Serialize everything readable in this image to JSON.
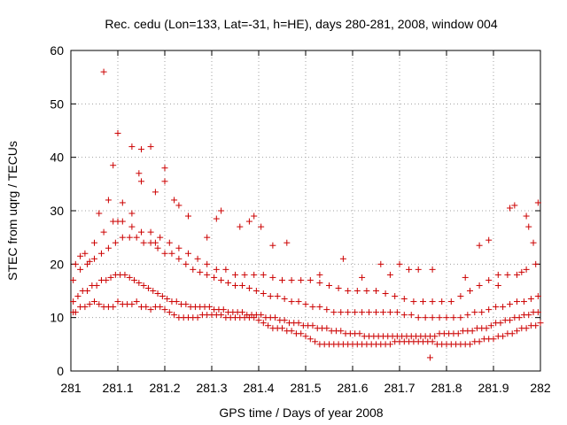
{
  "chart_data": {
    "type": "scatter",
    "title": "Rec. cedu (Lon=133, Lat=-31, h=HE), days 280-281, 2008, window 004",
    "xlabel": "GPS time / Days of year 2008",
    "ylabel": "STEC from uqrg / TECUs",
    "xlim": [
      281,
      282
    ],
    "ylim": [
      0,
      60
    ],
    "xticks": [
      281,
      281.1,
      281.2,
      281.3,
      281.4,
      281.5,
      281.6,
      281.7,
      281.8,
      281.9,
      282
    ],
    "xtick_labels": [
      "281",
      "281.1",
      "281.2",
      "281.3",
      "281.4",
      "281.5",
      "281.6",
      "281.7",
      "281.8",
      "281.9",
      "282"
    ],
    "yticks": [
      0,
      10,
      20,
      30,
      40,
      50,
      60
    ],
    "ytick_labels": [
      "0",
      "10",
      "20",
      "30",
      "40",
      "50",
      "60"
    ],
    "grid": true,
    "marker": "+",
    "color": "#cc0000",
    "series": [
      {
        "name": "",
        "x": [
          281.005,
          281.01,
          281.02,
          281.03,
          281.04,
          281.05,
          281.06,
          281.07,
          281.08,
          281.09,
          281.1,
          281.11,
          281.12,
          281.13,
          281.14,
          281.15,
          281.16,
          281.17,
          281.18,
          281.19,
          281.2,
          281.21,
          281.22,
          281.23,
          281.24,
          281.25,
          281.26,
          281.27,
          281.28,
          281.29,
          281.3,
          281.31,
          281.32,
          281.33,
          281.34,
          281.35,
          281.36,
          281.37,
          281.38,
          281.39,
          281.4,
          281.41,
          281.42,
          281.43,
          281.44,
          281.45,
          281.46,
          281.47,
          281.48,
          281.49,
          281.5,
          281.51,
          281.52,
          281.53,
          281.54,
          281.55,
          281.56,
          281.57,
          281.58,
          281.59,
          281.6,
          281.61,
          281.62,
          281.63,
          281.64,
          281.65,
          281.66,
          281.67,
          281.68,
          281.69,
          281.7,
          281.71,
          281.72,
          281.73,
          281.74,
          281.75,
          281.76,
          281.77,
          281.78,
          281.79,
          281.8,
          281.81,
          281.82,
          281.83,
          281.84,
          281.85,
          281.86,
          281.87,
          281.88,
          281.89,
          281.9,
          281.91,
          281.92,
          281.93,
          281.94,
          281.95,
          281.96,
          281.97,
          281.98,
          281.99,
          282,
          281.005,
          281.015,
          281.025,
          281.035,
          281.045,
          281.055,
          281.065,
          281.075,
          281.085,
          281.095,
          281.105,
          281.115,
          281.125,
          281.135,
          281.145,
          281.155,
          281.165,
          281.175,
          281.185,
          281.195,
          281.205,
          281.215,
          281.225,
          281.235,
          281.245,
          281.255,
          281.265,
          281.275,
          281.285,
          281.295,
          281.305,
          281.315,
          281.325,
          281.335,
          281.345,
          281.355,
          281.365,
          281.375,
          281.385,
          281.395,
          281.405,
          281.415,
          281.425,
          281.435,
          281.445,
          281.455,
          281.465,
          281.475,
          281.485,
          281.495,
          281.505,
          281.515,
          281.525,
          281.535,
          281.545,
          281.555,
          281.565,
          281.575,
          281.585,
          281.595,
          281.605,
          281.615,
          281.625,
          281.635,
          281.645,
          281.655,
          281.665,
          281.675,
          281.685,
          281.695,
          281.705,
          281.715,
          281.725,
          281.735,
          281.745,
          281.755,
          281.765,
          281.775,
          281.785,
          281.795,
          281.805,
          281.815,
          281.825,
          281.835,
          281.845,
          281.855,
          281.865,
          281.875,
          281.885,
          281.895,
          281.905,
          281.915,
          281.925,
          281.935,
          281.945,
          281.955,
          281.965,
          281.975,
          281.985,
          281.995,
          281.005,
          281.02,
          281.035,
          281.05,
          281.065,
          281.08,
          281.095,
          281.11,
          281.125,
          281.14,
          281.155,
          281.17,
          281.185,
          281.2,
          281.215,
          281.23,
          281.245,
          281.26,
          281.275,
          281.29,
          281.305,
          281.32,
          281.335,
          281.35,
          281.365,
          281.38,
          281.395,
          281.41,
          281.425,
          281.44,
          281.455,
          281.47,
          281.485,
          281.5,
          281.515,
          281.53,
          281.545,
          281.56,
          281.575,
          281.59,
          281.605,
          281.62,
          281.635,
          281.65,
          281.665,
          281.68,
          281.695,
          281.71,
          281.725,
          281.74,
          281.755,
          281.77,
          281.785,
          281.8,
          281.815,
          281.83,
          281.845,
          281.86,
          281.875,
          281.89,
          281.905,
          281.92,
          281.935,
          281.95,
          281.965,
          281.98,
          281.995,
          281.01,
          281.03,
          281.05,
          281.07,
          281.09,
          281.11,
          281.13,
          281.15,
          281.17,
          281.19,
          281.21,
          281.23,
          281.25,
          281.27,
          281.29,
          281.31,
          281.33,
          281.35,
          281.37,
          281.39,
          281.41,
          281.43,
          281.45,
          281.47,
          281.49,
          281.51,
          281.53,
          281.55,
          281.57,
          281.59,
          281.61,
          281.63,
          281.65,
          281.67,
          281.69,
          281.71,
          281.73,
          281.75,
          281.77,
          281.79,
          281.81,
          281.83,
          281.85,
          281.87,
          281.89,
          281.91,
          281.93,
          281.95,
          281.97,
          281.99,
          281.07,
          281.09,
          281.1,
          281.13,
          281.15,
          281.17,
          281.2,
          281.15,
          281.145,
          281.2,
          281.22,
          281.11,
          281.23,
          281.08,
          281.1,
          281.13,
          281.18,
          281.29,
          281.32,
          281.39,
          281.38,
          281.405,
          281.46,
          281.58,
          281.7,
          281.72,
          281.68,
          281.77,
          281.87,
          281.89,
          281.935,
          281.945,
          281.975,
          281.985,
          281.995,
          281.97,
          281.96,
          281.765,
          281.02,
          281.04,
          281.06,
          281.18,
          281.25,
          281.31,
          281.36,
          281.43,
          281.53,
          281.62,
          281.66,
          281.74,
          281.84,
          281.91
        ],
        "y": [
          11,
          11,
          12,
          12,
          12.5,
          13,
          12.5,
          12,
          12,
          12,
          13,
          12.5,
          12.5,
          12.5,
          13,
          12,
          12,
          11.5,
          12,
          12,
          11.5,
          11,
          10.5,
          10,
          10,
          10,
          10,
          10,
          10.5,
          10.5,
          10.5,
          10.5,
          10.5,
          10,
          10,
          10,
          10,
          10,
          10,
          10,
          9.5,
          9,
          8.5,
          8,
          8,
          8,
          7.5,
          7.5,
          7,
          7,
          6.5,
          6,
          5.5,
          5,
          5,
          5,
          5,
          5,
          5,
          5,
          5,
          5,
          5,
          5,
          5,
          5,
          5,
          5,
          5,
          5.5,
          5.5,
          5.5,
          5.5,
          5.5,
          5.5,
          5.5,
          5.5,
          5.5,
          5,
          5,
          5,
          5,
          5,
          5,
          5,
          5,
          5.5,
          5.5,
          6,
          6,
          6,
          6.5,
          6.5,
          7,
          7,
          7.5,
          8,
          8,
          8.5,
          8.5,
          9,
          13,
          14,
          15,
          15,
          16,
          16,
          17,
          17,
          17.5,
          18,
          18,
          18,
          17.5,
          17,
          16.5,
          16,
          15.5,
          15,
          14.5,
          14,
          13.5,
          13,
          13,
          12.5,
          12.5,
          12,
          12,
          12,
          12,
          12,
          11.5,
          11.5,
          11.5,
          11,
          11,
          11,
          11,
          10.5,
          10.5,
          10.5,
          10.5,
          10,
          10,
          10,
          9.5,
          9.5,
          9,
          9,
          9,
          8.5,
          8.5,
          8.5,
          8,
          8,
          8,
          7.5,
          7.5,
          7.5,
          7,
          7,
          7,
          7,
          6.5,
          6.5,
          6.5,
          6.5,
          6.5,
          6.5,
          6.5,
          6.5,
          6.5,
          6.5,
          6.5,
          6.5,
          6.5,
          6.5,
          6.5,
          6.5,
          7,
          7,
          7,
          7,
          7,
          7.5,
          7.5,
          7.5,
          8,
          8,
          8,
          8.5,
          9,
          9,
          9.5,
          9.5,
          10,
          10,
          10.5,
          10.5,
          11,
          11,
          17,
          19,
          20,
          21,
          22,
          23,
          24,
          25,
          25,
          25,
          24,
          24,
          23,
          22,
          22,
          21,
          20,
          19,
          18.5,
          18,
          17.5,
          17,
          16.5,
          16,
          16,
          15.5,
          15,
          14.5,
          14,
          14,
          13.5,
          13,
          13,
          12.5,
          12,
          12,
          11.5,
          11,
          11,
          11,
          11,
          11,
          11,
          11,
          11,
          11,
          11,
          10.5,
          10.5,
          10,
          10,
          10,
          10,
          10,
          10,
          10,
          10.5,
          11,
          11,
          11.5,
          12,
          12,
          12.5,
          13,
          13,
          13.5,
          14,
          20,
          22,
          24,
          26,
          28,
          28,
          27,
          26,
          26,
          25,
          24,
          23,
          22,
          21,
          20,
          19,
          19,
          18,
          18,
          18,
          18,
          17.5,
          17,
          17,
          17,
          17,
          16.5,
          16,
          15.5,
          15,
          15,
          15,
          15,
          14.5,
          14,
          13.5,
          13,
          13,
          13,
          13,
          13,
          14,
          15,
          16,
          17,
          18,
          18,
          18,
          19,
          20,
          56,
          38.5,
          44.5,
          42,
          41.5,
          42,
          38,
          35.5,
          37,
          35.5,
          32,
          31.5,
          31,
          32,
          28,
          29.5,
          24,
          25,
          30,
          29,
          28,
          27,
          24,
          21,
          20,
          19,
          18,
          19,
          23.5,
          24.5,
          30.5,
          31,
          27,
          24,
          31.5,
          29,
          18.5,
          2.5,
          21.5,
          20.5,
          29.5,
          33.5,
          29,
          28.5,
          27,
          23.5,
          18,
          17.5,
          20,
          19,
          17.5,
          16
        ]
      }
    ]
  }
}
